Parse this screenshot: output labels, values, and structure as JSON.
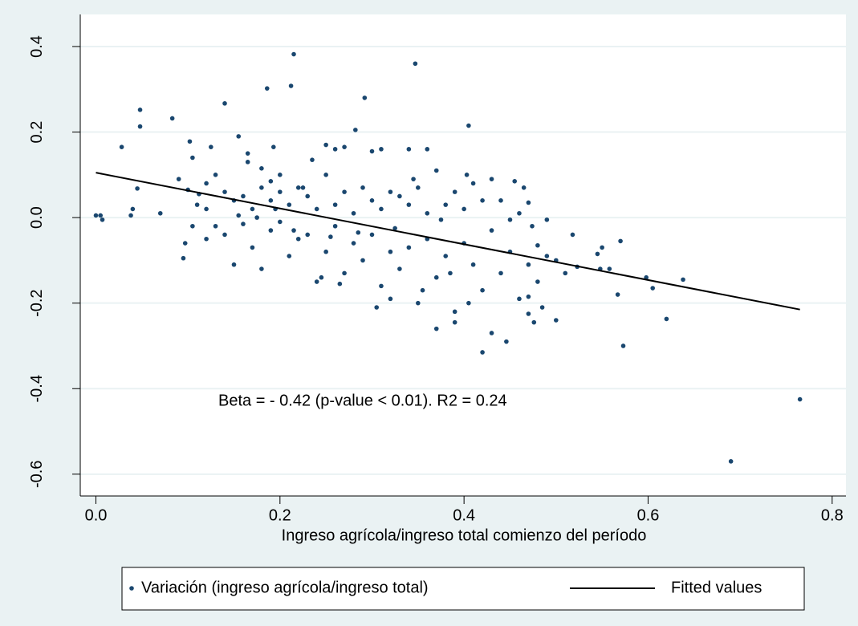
{
  "chart_data": {
    "type": "scatter",
    "xlabel": "Ingreso agrícola/ingreso total comienzo del período",
    "annotation": "Beta = - 0.42 (p-value < 0.01). R2 = 0.24",
    "xlim": [
      -0.017,
      0.815
    ],
    "ylim": [
      -0.651,
      0.475
    ],
    "xticks": [
      {
        "value": 0,
        "label": "0.0"
      },
      0.2,
      0.4,
      0.6,
      0.8
    ],
    "yticks": [
      -0.6,
      -0.4,
      -0.2,
      {
        "value": 0,
        "label": "0.0"
      },
      0.2,
      0.4
    ],
    "grid": true,
    "series": [
      {
        "name": "Variación (ingreso agrícola/ingreso total)",
        "type": "scatter",
        "color": "#1a476f",
        "x": [
          0.0,
          0.005,
          0.007,
          0.028,
          0.038,
          0.04,
          0.045,
          0.048,
          0.048,
          0.07,
          0.083,
          0.095,
          0.097,
          0.1,
          0.102,
          0.105,
          0.11,
          0.14,
          0.155,
          0.165,
          0.18,
          0.186,
          0.193,
          0.212,
          0.215,
          0.347,
          0.292,
          0.282,
          0.405,
          0.403,
          0.42,
          0.37,
          0.446,
          0.573,
          0.62,
          0.69,
          0.765,
          0.638,
          0.598,
          0.605,
          0.57,
          0.567,
          0.55,
          0.548,
          0.545,
          0.558,
          0.523,
          0.518,
          0.5,
          0.485,
          0.476,
          0.47,
          0.47,
          0.474,
          0.49,
          0.48,
          0.13,
          0.14,
          0.15,
          0.16,
          0.17,
          0.18,
          0.19,
          0.2,
          0.21,
          0.22,
          0.23,
          0.24,
          0.25,
          0.26,
          0.27,
          0.28,
          0.29,
          0.3,
          0.31,
          0.32,
          0.33,
          0.34,
          0.35,
          0.36,
          0.37,
          0.38,
          0.39,
          0.4,
          0.41,
          0.42,
          0.12,
          0.13,
          0.15,
          0.17,
          0.18,
          0.19,
          0.2,
          0.21,
          0.22,
          0.23,
          0.24,
          0.25,
          0.26,
          0.27,
          0.28,
          0.29,
          0.3,
          0.31,
          0.32,
          0.33,
          0.34,
          0.35,
          0.36,
          0.37,
          0.38,
          0.39,
          0.4,
          0.41,
          0.42,
          0.43,
          0.44,
          0.45,
          0.46,
          0.47,
          0.48,
          0.49,
          0.5,
          0.51,
          0.45,
          0.46,
          0.43,
          0.44,
          0.455,
          0.465,
          0.47,
          0.36,
          0.34,
          0.31,
          0.3,
          0.27,
          0.25,
          0.26,
          0.235,
          0.225,
          0.2,
          0.19,
          0.165,
          0.12,
          0.125,
          0.112,
          0.09,
          0.16,
          0.14,
          0.105,
          0.12,
          0.345,
          0.385,
          0.405,
          0.355,
          0.32,
          0.305,
          0.265,
          0.245,
          0.39,
          0.43,
          0.375,
          0.325,
          0.285,
          0.255,
          0.215,
          0.195,
          0.175,
          0.155
        ],
        "values": [
          0.005,
          0.005,
          -0.005,
          0.165,
          0.005,
          0.02,
          0.068,
          0.252,
          0.213,
          0.01,
          0.232,
          -0.095,
          -0.06,
          0.065,
          0.178,
          0.14,
          0.03,
          0.267,
          0.19,
          0.15,
          0.115,
          0.302,
          0.165,
          0.308,
          0.382,
          0.36,
          0.28,
          0.205,
          0.215,
          0.1,
          -0.315,
          -0.26,
          -0.29,
          -0.3,
          -0.237,
          -0.57,
          -0.425,
          -0.145,
          -0.14,
          -0.165,
          -0.055,
          -0.18,
          -0.07,
          -0.12,
          -0.085,
          -0.12,
          -0.115,
          -0.04,
          -0.24,
          -0.21,
          -0.245,
          -0.185,
          -0.225,
          -0.02,
          -0.005,
          -0.065,
          0.1,
          0.06,
          0.04,
          0.05,
          0.02,
          0.07,
          0.04,
          0.06,
          0.03,
          0.07,
          0.05,
          0.02,
          0.1,
          0.03,
          0.06,
          0.01,
          0.07,
          0.04,
          0.02,
          0.06,
          0.05,
          0.03,
          0.07,
          0.01,
          0.11,
          0.03,
          0.06,
          0.02,
          0.08,
          0.04,
          -0.05,
          -0.02,
          -0.11,
          -0.07,
          -0.12,
          -0.03,
          -0.01,
          -0.09,
          -0.05,
          -0.04,
          -0.15,
          -0.08,
          -0.02,
          -0.13,
          -0.06,
          -0.1,
          -0.04,
          -0.16,
          -0.08,
          -0.12,
          -0.07,
          -0.2,
          -0.05,
          -0.14,
          -0.09,
          -0.22,
          -0.06,
          -0.11,
          -0.17,
          -0.03,
          -0.13,
          -0.08,
          -0.19,
          -0.11,
          -0.15,
          -0.09,
          -0.1,
          -0.13,
          -0.005,
          0.01,
          0.09,
          0.04,
          0.085,
          0.07,
          0.035,
          0.16,
          0.16,
          0.16,
          0.155,
          0.165,
          0.17,
          0.16,
          0.135,
          0.07,
          0.1,
          0.085,
          0.13,
          0.08,
          0.165,
          0.055,
          0.09,
          -0.015,
          -0.04,
          -0.02,
          0.02,
          0.09,
          -0.13,
          -0.2,
          -0.17,
          -0.19,
          -0.21,
          -0.155,
          -0.14,
          -0.245,
          -0.27,
          -0.005,
          -0.025,
          -0.035,
          -0.045,
          -0.03,
          0.02,
          0.0,
          0.005
        ]
      },
      {
        "name": "Fitted values",
        "type": "line",
        "color": "#000000",
        "x": [
          0,
          0.765
        ],
        "values": [
          0.105,
          -0.215
        ]
      }
    ]
  }
}
